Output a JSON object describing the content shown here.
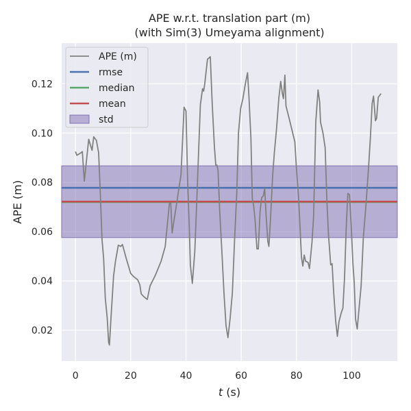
{
  "chart_data": {
    "type": "line",
    "title": "APE w.r.t. translation part (m)",
    "subtitle": "(with Sim(3) Umeyama alignment)",
    "xlabel_var": "t",
    "xlabel_unit": " (s)",
    "ylabel": "APE (m)",
    "xlim": [
      -5,
      116.5
    ],
    "ylim": [
      0.0075,
      0.1365
    ],
    "xticks": [
      0,
      20,
      40,
      60,
      80,
      100
    ],
    "yticks": [
      0.02,
      0.04,
      0.06,
      0.08,
      0.1,
      0.12
    ],
    "ytick_labels": [
      "0.02",
      "0.04",
      "0.06",
      "0.08",
      "0.10",
      "0.12"
    ],
    "grid": true,
    "legend_position": "top-left",
    "stats": {
      "rmse": 0.0778,
      "median": 0.072,
      "mean": 0.0722,
      "std_band": [
        0.0576,
        0.0867
      ]
    },
    "legend": [
      {
        "label": "APE (m)",
        "kind": "line",
        "color": "#808080"
      },
      {
        "label": "rmse",
        "kind": "line",
        "color": "#4c72b0"
      },
      {
        "label": "median",
        "kind": "line",
        "color": "#55a868"
      },
      {
        "label": "mean",
        "kind": "line",
        "color": "#c44e52"
      },
      {
        "label": "std",
        "kind": "patch",
        "color": "#8172b3"
      }
    ],
    "colors": {
      "background": "#eaeaf2",
      "grid": "#ffffff",
      "ape": "#808080",
      "rmse": "#4c72b0",
      "median": "#55a868",
      "mean": "#c44e52",
      "std": "#8172b3"
    },
    "series": [
      {
        "name": "APE (m)",
        "points": [
          [
            0.0,
            0.0925
          ],
          [
            0.5,
            0.091
          ],
          [
            2.0,
            0.092
          ],
          [
            2.5,
            0.0925
          ],
          [
            3.2,
            0.0805
          ],
          [
            4.0,
            0.089
          ],
          [
            4.8,
            0.0975
          ],
          [
            5.6,
            0.0945
          ],
          [
            6.0,
            0.093
          ],
          [
            6.6,
            0.0985
          ],
          [
            7.6,
            0.097
          ],
          [
            8.4,
            0.092
          ],
          [
            9.0,
            0.075
          ],
          [
            9.6,
            0.057
          ],
          [
            10.2,
            0.049
          ],
          [
            10.8,
            0.033
          ],
          [
            11.5,
            0.025
          ],
          [
            12.0,
            0.015
          ],
          [
            12.3,
            0.014
          ],
          [
            12.7,
            0.022
          ],
          [
            13.3,
            0.033
          ],
          [
            13.8,
            0.042
          ],
          [
            14.5,
            0.048
          ],
          [
            15.5,
            0.0545
          ],
          [
            16.4,
            0.054
          ],
          [
            17.0,
            0.0548
          ],
          [
            18.4,
            0.049
          ],
          [
            20.0,
            0.043
          ],
          [
            21.0,
            0.0418
          ],
          [
            22.5,
            0.0405
          ],
          [
            23.3,
            0.0385
          ],
          [
            23.8,
            0.0348
          ],
          [
            24.4,
            0.034
          ],
          [
            25.6,
            0.0328
          ],
          [
            26.0,
            0.0325
          ],
          [
            27.0,
            0.038
          ],
          [
            29.0,
            0.0425
          ],
          [
            31.0,
            0.048
          ],
          [
            32.5,
            0.054
          ],
          [
            34.0,
            0.0715
          ],
          [
            34.5,
            0.0715
          ],
          [
            35.0,
            0.0595
          ],
          [
            35.6,
            0.064
          ],
          [
            36.5,
            0.0705
          ],
          [
            37.5,
            0.078
          ],
          [
            38.2,
            0.083
          ],
          [
            38.8,
            0.0975
          ],
          [
            39.3,
            0.1105
          ],
          [
            40.0,
            0.109
          ],
          [
            40.6,
            0.0805
          ],
          [
            41.2,
            0.062
          ],
          [
            41.6,
            0.0465
          ],
          [
            42.3,
            0.039
          ],
          [
            43.2,
            0.052
          ],
          [
            44.0,
            0.075
          ],
          [
            45.2,
            0.1115
          ],
          [
            46.0,
            0.118
          ],
          [
            46.4,
            0.117
          ],
          [
            46.8,
            0.12
          ],
          [
            47.8,
            0.13
          ],
          [
            48.8,
            0.131
          ],
          [
            49.5,
            0.112
          ],
          [
            50.3,
            0.0945
          ],
          [
            50.8,
            0.087
          ],
          [
            51.2,
            0.087
          ],
          [
            51.6,
            0.0848
          ],
          [
            52.2,
            0.0685
          ],
          [
            53.0,
            0.052
          ],
          [
            53.8,
            0.0345
          ],
          [
            54.5,
            0.0218
          ],
          [
            55.2,
            0.017
          ],
          [
            56.0,
            0.025
          ],
          [
            56.8,
            0.035
          ],
          [
            57.6,
            0.057
          ],
          [
            58.4,
            0.076
          ],
          [
            59.0,
            0.1
          ],
          [
            59.8,
            0.11
          ],
          [
            60.6,
            0.114
          ],
          [
            61.5,
            0.12
          ],
          [
            62.3,
            0.1245
          ],
          [
            62.8,
            0.115
          ],
          [
            63.5,
            0.098
          ],
          [
            64.0,
            0.0735
          ],
          [
            64.5,
            0.0705
          ],
          [
            65.0,
            0.065
          ],
          [
            65.7,
            0.053
          ],
          [
            66.2,
            0.053
          ],
          [
            66.8,
            0.068
          ],
          [
            67.4,
            0.0738
          ],
          [
            68.0,
            0.0745
          ],
          [
            68.5,
            0.0775
          ],
          [
            69.0,
            0.067
          ],
          [
            69.6,
            0.0562
          ],
          [
            70.0,
            0.054
          ],
          [
            70.6,
            0.065
          ],
          [
            71.4,
            0.083
          ],
          [
            72.0,
            0.092
          ],
          [
            72.8,
            0.102
          ],
          [
            73.6,
            0.114
          ],
          [
            74.3,
            0.121
          ],
          [
            74.9,
            0.116
          ],
          [
            75.3,
            0.114
          ],
          [
            75.8,
            0.1235
          ],
          [
            76.2,
            0.111
          ],
          [
            77.0,
            0.1075
          ],
          [
            78.0,
            0.103
          ],
          [
            79.4,
            0.0965
          ],
          [
            80.0,
            0.0855
          ],
          [
            80.7,
            0.075
          ],
          [
            81.3,
            0.062
          ],
          [
            81.8,
            0.0495
          ],
          [
            82.3,
            0.046
          ],
          [
            82.8,
            0.0505
          ],
          [
            83.3,
            0.048
          ],
          [
            84.2,
            0.0475
          ],
          [
            84.7,
            0.045
          ],
          [
            85.6,
            0.0555
          ],
          [
            86.2,
            0.066
          ],
          [
            87.0,
            0.1045
          ],
          [
            87.8,
            0.1175
          ],
          [
            88.4,
            0.1125
          ],
          [
            88.7,
            0.1045
          ],
          [
            89.6,
            0.1
          ],
          [
            90.4,
            0.094
          ],
          [
            91.0,
            0.0725
          ],
          [
            91.6,
            0.0585
          ],
          [
            92.4,
            0.0465
          ],
          [
            92.9,
            0.047
          ],
          [
            93.5,
            0.035
          ],
          [
            94.2,
            0.0235
          ],
          [
            94.8,
            0.0175
          ],
          [
            95.4,
            0.0235
          ],
          [
            96.2,
            0.027
          ],
          [
            96.8,
            0.029
          ],
          [
            97.4,
            0.0415
          ],
          [
            98.0,
            0.0615
          ],
          [
            98.6,
            0.0755
          ],
          [
            99.2,
            0.075
          ],
          [
            99.8,
            0.0625
          ],
          [
            100.4,
            0.0475
          ],
          [
            100.9,
            0.0395
          ],
          [
            101.4,
            0.0245
          ],
          [
            102.0,
            0.0205
          ],
          [
            102.6,
            0.028
          ],
          [
            103.4,
            0.038
          ],
          [
            104.2,
            0.0575
          ],
          [
            105.0,
            0.0685
          ],
          [
            106.0,
            0.0845
          ],
          [
            106.8,
            0.099
          ],
          [
            107.4,
            0.112
          ],
          [
            107.9,
            0.115
          ],
          [
            108.6,
            0.105
          ],
          [
            109.0,
            0.106
          ],
          [
            109.6,
            0.1145
          ],
          [
            110.6,
            0.116
          ]
        ]
      }
    ]
  }
}
